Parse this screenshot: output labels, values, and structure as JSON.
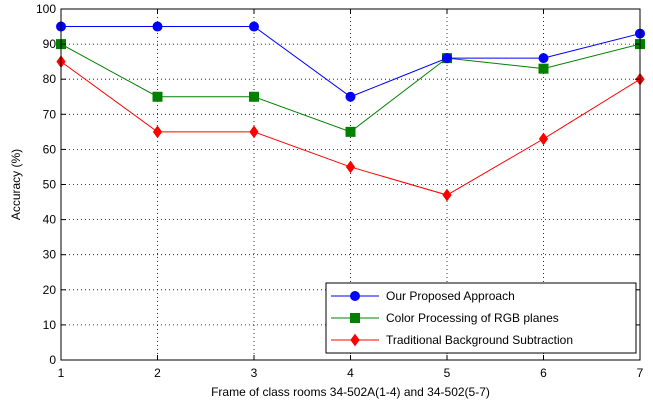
{
  "chart_data": {
    "type": "line",
    "x": [
      1,
      2,
      3,
      4,
      5,
      6,
      7
    ],
    "xlabel": "Frame of class rooms 34-502A(1-4) and 34-502(5-7)",
    "ylabel": "Accuracy (%)",
    "xlim": [
      1,
      7
    ],
    "ylim": [
      0,
      100
    ],
    "xticks": [
      "1",
      "2",
      "3",
      "4",
      "5",
      "6",
      "7"
    ],
    "yticks": [
      "0",
      "10",
      "20",
      "30",
      "40",
      "50",
      "60",
      "70",
      "80",
      "90",
      "100"
    ],
    "grid": true,
    "legend_position": "bottom-right",
    "series": [
      {
        "name": "Our Proposed Approach",
        "color": "#0000ff",
        "marker": "circle",
        "values": [
          95,
          95,
          95,
          75,
          86,
          86,
          93
        ]
      },
      {
        "name": "Color Processing of RGB planes",
        "color": "#008000",
        "marker": "square",
        "values": [
          90,
          75,
          75,
          65,
          86,
          83,
          90
        ]
      },
      {
        "name": "Traditional Background Subtraction",
        "color": "#ff0000",
        "marker": "diamond",
        "values": [
          85,
          65,
          65,
          55,
          47,
          63,
          80
        ]
      }
    ]
  }
}
